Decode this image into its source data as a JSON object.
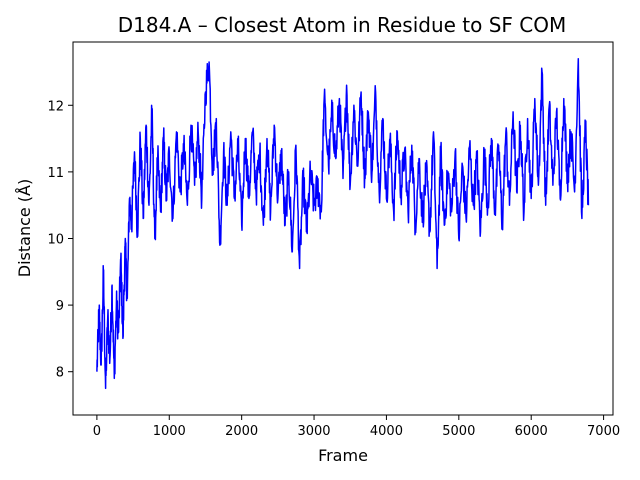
{
  "chart_data": {
    "type": "line",
    "title": "D184.A – Closest Atom in Residue to SF COM",
    "xlabel": "Frame",
    "ylabel": "Distance (Å)",
    "xlim": [
      -330,
      7130
    ],
    "ylim": [
      7.35,
      12.95
    ],
    "xticks": [
      0,
      1000,
      2000,
      3000,
      4000,
      5000,
      6000,
      7000
    ],
    "yticks": [
      8,
      9,
      10,
      11,
      12
    ],
    "grid": false,
    "legend": "none",
    "series": [
      {
        "color": "#0000ff",
        "points": [
          [
            0,
            8.0
          ],
          [
            30,
            8.9
          ],
          [
            60,
            8.1
          ],
          [
            90,
            9.5
          ],
          [
            120,
            7.75
          ],
          [
            150,
            8.8
          ],
          [
            180,
            8.2
          ],
          [
            210,
            9.3
          ],
          [
            240,
            7.9
          ],
          [
            270,
            9.0
          ],
          [
            300,
            8.6
          ],
          [
            330,
            9.7
          ],
          [
            360,
            8.5
          ],
          [
            390,
            9.9
          ],
          [
            420,
            9.1
          ],
          [
            450,
            10.6
          ],
          [
            480,
            10.2
          ],
          [
            520,
            11.3
          ],
          [
            560,
            10.1
          ],
          [
            600,
            11.5
          ],
          [
            640,
            10.3
          ],
          [
            680,
            11.7
          ],
          [
            720,
            10.5
          ],
          [
            760,
            11.9
          ],
          [
            800,
            10.0
          ],
          [
            840,
            11.2
          ],
          [
            880,
            10.4
          ],
          [
            920,
            11.5
          ],
          [
            960,
            10.6
          ],
          [
            1000,
            11.3
          ],
          [
            1050,
            10.3
          ],
          [
            1100,
            11.6
          ],
          [
            1150,
            10.7
          ],
          [
            1200,
            11.4
          ],
          [
            1250,
            10.5
          ],
          [
            1300,
            11.7
          ],
          [
            1350,
            10.8
          ],
          [
            1400,
            11.6
          ],
          [
            1450,
            10.6
          ],
          [
            1500,
            12.2
          ],
          [
            1550,
            12.65
          ],
          [
            1600,
            11.0
          ],
          [
            1650,
            11.8
          ],
          [
            1700,
            9.9
          ],
          [
            1750,
            11.3
          ],
          [
            1800,
            10.5
          ],
          [
            1850,
            11.6
          ],
          [
            1900,
            10.6
          ],
          [
            1950,
            11.4
          ],
          [
            2000,
            10.2
          ],
          [
            2050,
            11.5
          ],
          [
            2100,
            10.6
          ],
          [
            2150,
            11.6
          ],
          [
            2200,
            10.7
          ],
          [
            2250,
            11.3
          ],
          [
            2300,
            10.2
          ],
          [
            2350,
            11.5
          ],
          [
            2400,
            10.4
          ],
          [
            2450,
            11.7
          ],
          [
            2500,
            10.6
          ],
          [
            2550,
            11.3
          ],
          [
            2600,
            10.2
          ],
          [
            2650,
            11.0
          ],
          [
            2700,
            9.8
          ],
          [
            2750,
            11.4
          ],
          [
            2800,
            9.55
          ],
          [
            2850,
            10.9
          ],
          [
            2900,
            10.1
          ],
          [
            2950,
            11.0
          ],
          [
            3000,
            10.5
          ],
          [
            3050,
            10.8
          ],
          [
            3100,
            10.4
          ],
          [
            3140,
            12.1
          ],
          [
            3200,
            11.1
          ],
          [
            3250,
            11.9
          ],
          [
            3300,
            11.2
          ],
          [
            3350,
            12.1
          ],
          [
            3400,
            10.9
          ],
          [
            3450,
            12.3
          ],
          [
            3500,
            10.8
          ],
          [
            3550,
            12.0
          ],
          [
            3600,
            11.1
          ],
          [
            3650,
            12.2
          ],
          [
            3700,
            10.9
          ],
          [
            3750,
            11.9
          ],
          [
            3800,
            11.0
          ],
          [
            3850,
            12.2
          ],
          [
            3900,
            10.7
          ],
          [
            3950,
            11.8
          ],
          [
            4000,
            10.6
          ],
          [
            4050,
            11.5
          ],
          [
            4100,
            10.4
          ],
          [
            4150,
            11.6
          ],
          [
            4200,
            10.7
          ],
          [
            4250,
            11.3
          ],
          [
            4300,
            10.4
          ],
          [
            4350,
            11.4
          ],
          [
            4400,
            10.2
          ],
          [
            4450,
            11.2
          ],
          [
            4500,
            10.3
          ],
          [
            4550,
            11.0
          ],
          [
            4600,
            10.1
          ],
          [
            4650,
            11.6
          ],
          [
            4700,
            9.55
          ],
          [
            4750,
            11.3
          ],
          [
            4800,
            10.2
          ],
          [
            4850,
            11.0
          ],
          [
            4900,
            10.4
          ],
          [
            4950,
            11.3
          ],
          [
            5000,
            10.0
          ],
          [
            5050,
            11.1
          ],
          [
            5100,
            10.3
          ],
          [
            5150,
            11.4
          ],
          [
            5200,
            10.5
          ],
          [
            5250,
            11.2
          ],
          [
            5300,
            10.1
          ],
          [
            5350,
            11.3
          ],
          [
            5400,
            10.5
          ],
          [
            5450,
            11.5
          ],
          [
            5500,
            10.4
          ],
          [
            5550,
            11.4
          ],
          [
            5600,
            10.2
          ],
          [
            5650,
            11.6
          ],
          [
            5700,
            10.5
          ],
          [
            5750,
            11.9
          ],
          [
            5800,
            10.7
          ],
          [
            5850,
            11.7
          ],
          [
            5900,
            10.4
          ],
          [
            5950,
            11.8
          ],
          [
            6000,
            10.6
          ],
          [
            6050,
            12.1
          ],
          [
            6100,
            10.8
          ],
          [
            6150,
            12.5
          ],
          [
            6200,
            10.5
          ],
          [
            6250,
            12.0
          ],
          [
            6300,
            10.8
          ],
          [
            6350,
            11.9
          ],
          [
            6400,
            10.6
          ],
          [
            6450,
            12.1
          ],
          [
            6500,
            10.9
          ],
          [
            6550,
            11.6
          ],
          [
            6600,
            10.7
          ],
          [
            6650,
            12.7
          ],
          [
            6700,
            10.3
          ],
          [
            6750,
            11.7
          ],
          [
            6790,
            10.5
          ]
        ]
      }
    ]
  }
}
